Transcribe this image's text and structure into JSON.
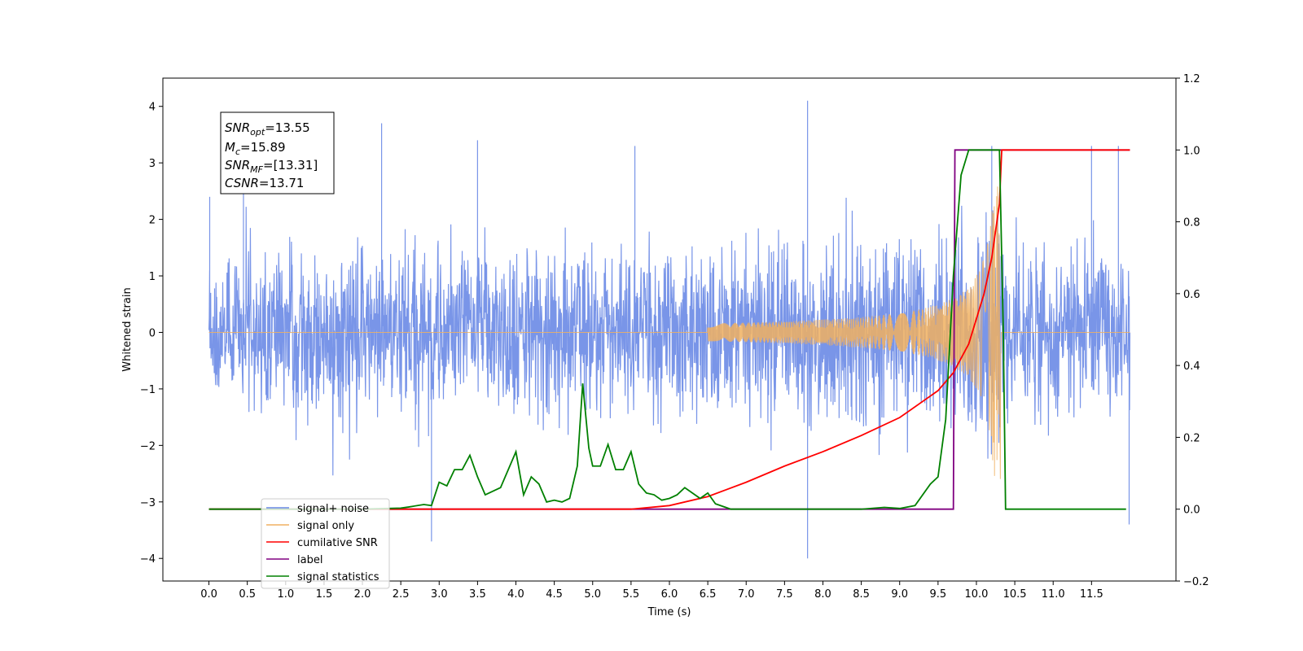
{
  "chart_data": {
    "type": "line",
    "title": "",
    "xlabel": "Time (s)",
    "ylabel": "Whitened strain",
    "xlim": [
      -0.6,
      12.6
    ],
    "ylim": [
      -4.4,
      4.5
    ],
    "y2lim": [
      -0.2,
      1.2
    ],
    "x_ticks": [
      "0.0",
      "0.5",
      "1.0",
      "1.5",
      "2.0",
      "2.5",
      "3.0",
      "3.5",
      "4.0",
      "4.5",
      "5.0",
      "5.5",
      "6.0",
      "6.5",
      "7.0",
      "7.5",
      "8.0",
      "8.5",
      "9.0",
      "9.5",
      "10.0",
      "10.5",
      "11.0",
      "11.5"
    ],
    "y_ticks": [
      "−4",
      "−3",
      "−2",
      "−1",
      "0",
      "1",
      "2",
      "3",
      "4"
    ],
    "y2_ticks": [
      "−0.2",
      "0.0",
      "0.2",
      "0.4",
      "0.6",
      "0.8",
      "1.0",
      "1.2"
    ],
    "grid": false,
    "legend_position": "lower-left",
    "info_box": {
      "line1_base": "SNR",
      "line1_sub": "opt",
      "line1_val": "=13.55",
      "line2_base": "M",
      "line2_sub": "c",
      "line2_val": "=15.89",
      "line3_base": "SNR",
      "line3_sub": "MF",
      "line3_val": "=[13.31]",
      "line4_base": "CSNR",
      "line4_val": "=13.71"
    },
    "series": [
      {
        "name": "signal+ noise",
        "axis": "left",
        "color": "#6a8ae6",
        "x_range": [
          0.0,
          12.0
        ],
        "approx_envelope": 1.6,
        "notable_peaks": [
          [
            0.01,
            2.4
          ],
          [
            0.45,
            2.5
          ],
          [
            2.25,
            3.7
          ],
          [
            3.5,
            3.4
          ],
          [
            5.55,
            3.3
          ],
          [
            7.8,
            4.1
          ],
          [
            10.2,
            3.3
          ],
          [
            11.5,
            3.3
          ],
          [
            11.85,
            3.3
          ],
          [
            2.9,
            -3.7
          ],
          [
            7.8,
            -4.0
          ],
          [
            11.99,
            -3.4
          ]
        ]
      },
      {
        "name": "signal only",
        "axis": "left",
        "color": "#f0b060",
        "chirp_start": 6.5,
        "merger_time": 10.32,
        "peak_amplitude": 2.6
      },
      {
        "name": "cumilative SNR",
        "axis": "right",
        "color": "#ff0000",
        "x": [
          0.0,
          5.5,
          6.0,
          6.5,
          7.0,
          7.5,
          8.0,
          8.5,
          9.0,
          9.5,
          9.7,
          9.9,
          10.1,
          10.2,
          10.3,
          10.33,
          12.0
        ],
        "y": [
          0.0,
          0.0,
          0.01,
          0.035,
          0.075,
          0.12,
          0.16,
          0.205,
          0.255,
          0.33,
          0.38,
          0.46,
          0.6,
          0.7,
          0.85,
          1.0,
          1.0
        ]
      },
      {
        "name": "label",
        "axis": "right",
        "color": "#800080",
        "x": [
          0.0,
          9.7,
          9.72,
          10.3,
          12.0
        ],
        "y": [
          0.0,
          0.0,
          1.0,
          1.0,
          1.0
        ]
      },
      {
        "name": "signal statistics",
        "axis": "right",
        "color": "#008000",
        "x": [
          0.0,
          2.0,
          2.5,
          2.6,
          2.8,
          2.9,
          3.0,
          3.1,
          3.2,
          3.3,
          3.4,
          3.5,
          3.6,
          3.8,
          4.0,
          4.1,
          4.2,
          4.3,
          4.4,
          4.5,
          4.6,
          4.7,
          4.8,
          4.87,
          4.95,
          5.0,
          5.1,
          5.2,
          5.3,
          5.4,
          5.5,
          5.6,
          5.7,
          5.8,
          5.9,
          6.0,
          6.1,
          6.2,
          6.3,
          6.4,
          6.5,
          6.6,
          6.8,
          7.0,
          8.5,
          8.8,
          9.0,
          9.2,
          9.4,
          9.5,
          9.6,
          9.7,
          9.8,
          9.9,
          10.0,
          10.3,
          10.35,
          10.38,
          11.95
        ],
        "y": [
          0.0,
          0.0,
          0.003,
          0.006,
          0.013,
          0.01,
          0.075,
          0.065,
          0.11,
          0.11,
          0.15,
          0.09,
          0.04,
          0.06,
          0.16,
          0.04,
          0.09,
          0.07,
          0.02,
          0.025,
          0.02,
          0.03,
          0.12,
          0.35,
          0.17,
          0.12,
          0.12,
          0.18,
          0.11,
          0.11,
          0.16,
          0.07,
          0.045,
          0.04,
          0.025,
          0.03,
          0.04,
          0.06,
          0.045,
          0.03,
          0.045,
          0.015,
          0.0,
          0.0,
          0.0,
          0.005,
          0.002,
          0.01,
          0.07,
          0.09,
          0.25,
          0.65,
          0.93,
          1.0,
          1.0,
          1.0,
          0.5,
          0.0,
          0.0
        ]
      }
    ]
  }
}
